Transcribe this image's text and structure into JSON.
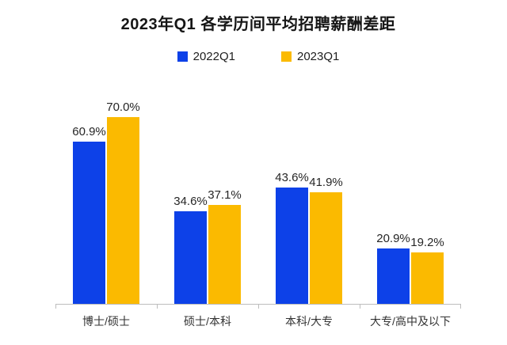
{
  "chart_data": {
    "type": "bar",
    "title": "2023年Q1 各学历间平均招聘薪酬差距",
    "categories": [
      "博士/硕士",
      "硕士/本科",
      "本科/大专",
      "大专/高中及以下"
    ],
    "series": [
      {
        "name": "2022Q1",
        "color": "#0d41e8",
        "values": [
          60.9,
          34.6,
          43.6,
          20.9
        ]
      },
      {
        "name": "2023Q1",
        "color": "#fbba00",
        "values": [
          70.0,
          37.1,
          41.9,
          19.2
        ]
      }
    ],
    "value_labels": [
      [
        "60.9%",
        "34.6%",
        "43.6%",
        "20.9%"
      ],
      [
        "70.0%",
        "37.1%",
        "41.9%",
        "19.2%"
      ]
    ],
    "value_suffix": "%",
    "xlabel": "",
    "ylabel": "",
    "ylim": [
      0,
      80
    ],
    "grid": false,
    "legend_position": "top",
    "y_axis_visible": false
  },
  "colors": {
    "series_2022": "#0d41e8",
    "series_2023": "#fbba00",
    "axis": "#bdbdbd",
    "title_text": "#161616",
    "label_text": "#262626"
  }
}
